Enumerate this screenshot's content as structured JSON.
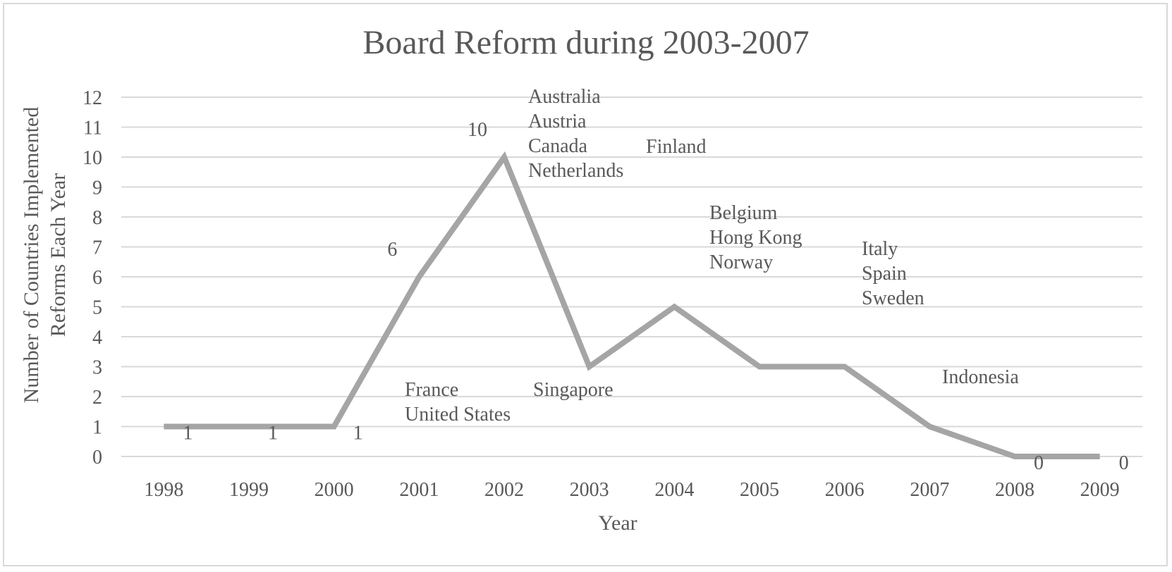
{
  "chart_data": {
    "type": "line",
    "title": "Board Reform during 2003-2007",
    "xlabel": "Year",
    "ylabel_lines": [
      "Number of Countries Implemented",
      "Reforms Each Year"
    ],
    "categories": [
      "1998",
      "1999",
      "2000",
      "2001",
      "2002",
      "2003",
      "2004",
      "2005",
      "2006",
      "2007",
      "2008",
      "2009"
    ],
    "ylim": [
      0,
      12
    ],
    "yticks": [
      "0",
      "1",
      "2",
      "3",
      "4",
      "5",
      "6",
      "7",
      "8",
      "9",
      "10",
      "11",
      "12"
    ],
    "grid": true,
    "series_color": "#a5a5a5",
    "series": [
      {
        "values": [
          1,
          1,
          1,
          6,
          10,
          3,
          5,
          3,
          3,
          1,
          0,
          0
        ]
      }
    ],
    "data_labels": [
      {
        "index": 0,
        "text": "1"
      },
      {
        "index": 1,
        "text": "1"
      },
      {
        "index": 2,
        "text": "1"
      },
      {
        "index": 3,
        "text": "6"
      },
      {
        "index": 4,
        "text": "10"
      },
      {
        "index": 10,
        "text": "0"
      },
      {
        "index": 11,
        "text": "0"
      }
    ],
    "annotations": [
      {
        "index": 3,
        "lines": [
          "France",
          "United States"
        ]
      },
      {
        "index": 4,
        "lines": [
          "Australia",
          "Austria",
          "Canada",
          "Netherlands"
        ]
      },
      {
        "index": 5,
        "lines": [
          "Singapore"
        ]
      },
      {
        "index": 5,
        "lines": [
          "Finland"
        ]
      },
      {
        "index": 6,
        "lines": [
          "Belgium",
          "Hong Kong",
          "Norway"
        ]
      },
      {
        "index": 8,
        "lines": [
          "Italy",
          "Spain",
          "Sweden"
        ]
      },
      {
        "index": 9,
        "lines": [
          "Indonesia"
        ]
      }
    ]
  }
}
